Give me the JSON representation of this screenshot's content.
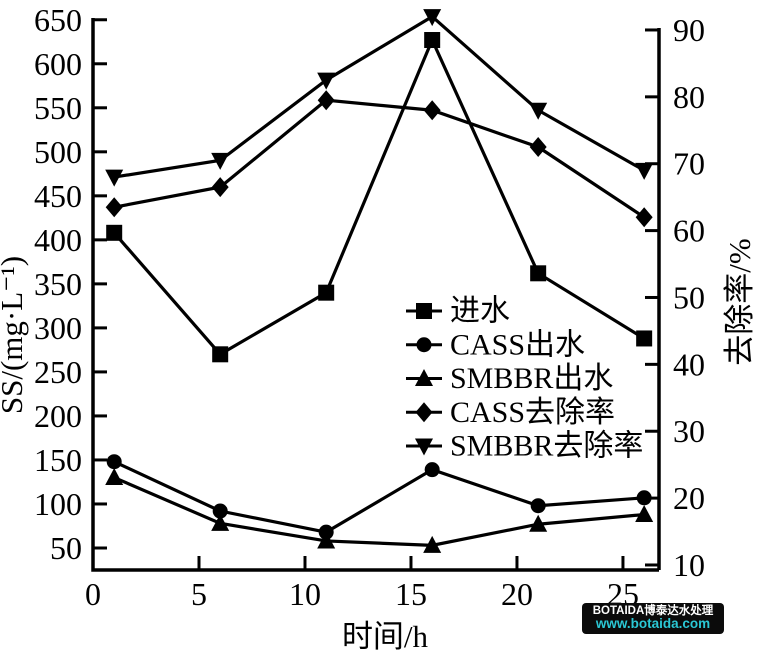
{
  "figure": {
    "background": "#ffffff",
    "line_color": "#000000",
    "text_color": "#000000"
  },
  "chart_data": {
    "type": "line",
    "title": "",
    "xlabel": "时间/h",
    "ylabel_left": "SS/(mg·L⁻¹)",
    "ylabel_right": "去除率/%",
    "grid": false,
    "legend_position": "inside-center-right",
    "x": [
      1,
      6,
      11,
      16,
      21,
      26
    ],
    "xlim": [
      0,
      26.7
    ],
    "x_major_ticks": [
      0,
      5,
      10,
      15,
      20,
      25
    ],
    "ylim_left": [
      25,
      652
    ],
    "y_left_major_ticks": [
      50,
      100,
      150,
      200,
      250,
      300,
      350,
      400,
      450,
      500,
      550,
      600,
      650
    ],
    "ylim_right": [
      9.25,
      91.79
    ],
    "y_right_major_ticks": [
      10,
      20,
      30,
      40,
      50,
      60,
      70,
      80,
      90
    ],
    "series": [
      {
        "id": "influent",
        "name": "进水",
        "marker": "square",
        "axis": "left",
        "values": [
          408,
          270,
          340,
          627,
          362,
          288
        ]
      },
      {
        "id": "cass-effluent",
        "name": "CASS出水",
        "marker": "circle",
        "axis": "left",
        "values": [
          148,
          92,
          68,
          139,
          98,
          107
        ]
      },
      {
        "id": "smbbr-effluent",
        "name": "SMBBR出水",
        "marker": "triangle-up",
        "axis": "left",
        "values": [
          130,
          78,
          58,
          53,
          77,
          88
        ]
      },
      {
        "id": "cass-removal",
        "name": "CASS去除率",
        "marker": "diamond",
        "axis": "right",
        "values": [
          63.5,
          66.5,
          79.5,
          78,
          72.5,
          62
        ]
      },
      {
        "id": "smbbr-removal",
        "name": "SMBBR去除率",
        "marker": "triangle-down",
        "axis": "right",
        "values": [
          68,
          70.5,
          82.5,
          92,
          78,
          69
        ]
      }
    ]
  },
  "watermark": {
    "line1": "BOTAIDA博泰达水处理",
    "line2": "www.botaida.com",
    "bg": "#0b0b0b",
    "line1_color": "#ffffff",
    "line2_color": "#2bc7d4"
  }
}
